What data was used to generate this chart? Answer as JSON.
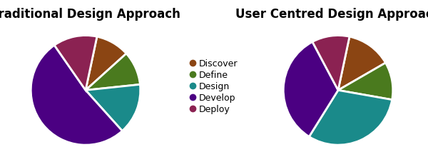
{
  "title1": "Traditional Design Approach",
  "title2": "User Centred Design Approach",
  "legend_labels": [
    "Discover",
    "Define",
    "Design",
    "Develop",
    "Deploy"
  ],
  "colors": [
    "#8B4513",
    "#4A7A1E",
    "#1A8A8A",
    "#4B0082",
    "#8B2252"
  ],
  "trad_values": [
    10,
    10,
    15,
    52,
    13
  ],
  "ucd_values": [
    12,
    10,
    28,
    30,
    10
  ],
  "trad_startangle": 78,
  "ucd_startangle": 78,
  "background_color": "#ffffff",
  "title_fontsize": 12,
  "wedge_linewidth": 2.0,
  "wedge_edgecolor": "#ffffff"
}
